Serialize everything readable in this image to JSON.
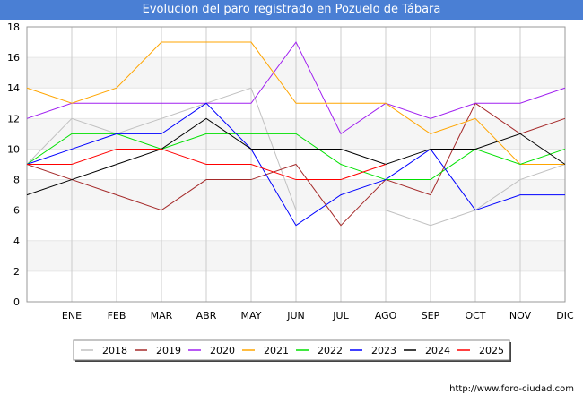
{
  "chart_data": {
    "type": "line",
    "title": "Evolucion del paro registrado en Pozuelo de Tábara",
    "categories": [
      "",
      "ENE",
      "FEB",
      "MAR",
      "ABR",
      "MAY",
      "JUN",
      "JUL",
      "AGO",
      "SEP",
      "OCT",
      "NOV",
      "DIC"
    ],
    "ylim": [
      0,
      18
    ],
    "yticks": [
      "0",
      "2",
      "4",
      "6",
      "8",
      "10",
      "12",
      "14",
      "16",
      "18"
    ],
    "grid": true,
    "series": [
      {
        "name": "2018",
        "color": "#c0c0c0",
        "values": [
          9,
          12,
          11,
          12,
          13,
          14,
          6,
          6,
          6,
          5,
          6,
          8,
          9
        ]
      },
      {
        "name": "2019",
        "color": "#a52a2a",
        "values": [
          9,
          8,
          7,
          6,
          8,
          8,
          9,
          5,
          8,
          7,
          13,
          11,
          12
        ]
      },
      {
        "name": "2020",
        "color": "#a020f0",
        "values": [
          12,
          13,
          13,
          13,
          13,
          13,
          17,
          11,
          13,
          12,
          13,
          13,
          14
        ]
      },
      {
        "name": "2021",
        "color": "#ffa500",
        "values": [
          14,
          13,
          14,
          17,
          17,
          17,
          13,
          13,
          13,
          11,
          12,
          9,
          9
        ]
      },
      {
        "name": "2022",
        "color": "#00e000",
        "values": [
          9,
          11,
          11,
          10,
          11,
          11,
          11,
          9,
          8,
          8,
          10,
          9,
          10
        ]
      },
      {
        "name": "2023",
        "color": "#0000ff",
        "values": [
          9,
          10,
          11,
          11,
          13,
          10,
          5,
          7,
          8,
          10,
          6,
          7,
          7
        ]
      },
      {
        "name": "2024",
        "color": "#000000",
        "values": [
          7,
          8,
          9,
          10,
          12,
          10,
          10,
          10,
          9,
          10,
          10,
          11,
          9
        ]
      },
      {
        "name": "2025",
        "color": "#ff0000",
        "values": [
          9,
          9,
          10,
          10,
          9,
          9,
          8,
          8,
          9,
          null,
          null,
          null,
          null
        ]
      }
    ],
    "legend_position": "bottom"
  },
  "footer": {
    "url": "http://www.foro-ciudad.com"
  }
}
